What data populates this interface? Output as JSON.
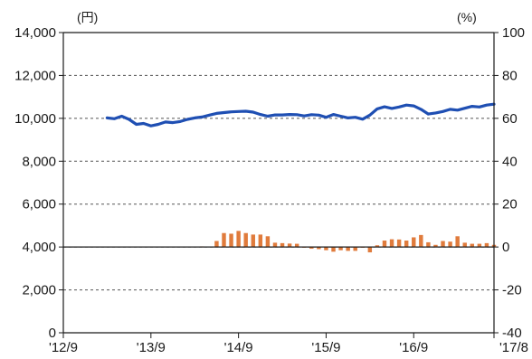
{
  "chart_data": {
    "type": "bar+line",
    "left_unit": "(円)",
    "right_unit": "(%)",
    "y_left": {
      "min": 0,
      "max": 14000,
      "ticks": [
        "0",
        "2,000",
        "4,000",
        "6,000",
        "8,000",
        "10,000",
        "12,000",
        "14,000"
      ]
    },
    "y_right": {
      "min": -40,
      "max": 100,
      "ticks": [
        "-40",
        "-20",
        "0",
        "20",
        "40",
        "60",
        "80",
        "100"
      ]
    },
    "x_ticks": [
      "'12/9",
      "'13/9",
      "'14/9",
      "'15/9",
      "'16/9",
      "'17/8"
    ],
    "x_tick_months": [
      0,
      12,
      24,
      36,
      48,
      59
    ],
    "x_range_months": [
      0,
      59
    ],
    "grid": "dashed horizontal",
    "zero_line_right_axis": 0,
    "colors": {
      "line": "#1f4fb3",
      "bars": "#e07b3c",
      "axis": "#1a1a1a",
      "grid": "#555555"
    },
    "line_series": {
      "axis": "left",
      "month_offsets": [
        6,
        7,
        8,
        9,
        10,
        11,
        12,
        13,
        14,
        15,
        16,
        17,
        18,
        19,
        20,
        21,
        22,
        23,
        24,
        25,
        26,
        27,
        28,
        29,
        30,
        31,
        32,
        33,
        34,
        35,
        36,
        37,
        38,
        39,
        40,
        41,
        42,
        43,
        44,
        45,
        46,
        47,
        48,
        49,
        50,
        51,
        52,
        53,
        54,
        55,
        56,
        57,
        58,
        59
      ],
      "values": [
        10020,
        9980,
        10100,
        9950,
        9720,
        9760,
        9650,
        9720,
        9830,
        9800,
        9850,
        9950,
        10020,
        10060,
        10150,
        10230,
        10270,
        10300,
        10320,
        10330,
        10290,
        10180,
        10100,
        10160,
        10160,
        10180,
        10170,
        10110,
        10170,
        10150,
        10050,
        10180,
        10100,
        10020,
        10050,
        9960,
        10150,
        10440,
        10540,
        10460,
        10530,
        10620,
        10580,
        10420,
        10200,
        10250,
        10320,
        10420,
        10380,
        10470,
        10560,
        10530,
        10620,
        10660
      ]
    },
    "bar_series": {
      "axis": "right",
      "month_offsets": [
        18,
        19,
        20,
        21,
        22,
        23,
        24,
        25,
        26,
        27,
        28,
        29,
        30,
        31,
        32,
        33,
        34,
        35,
        36,
        37,
        38,
        39,
        40,
        41,
        42,
        43,
        44,
        45,
        46,
        47,
        48,
        49,
        50,
        51,
        52,
        53,
        54,
        55,
        56,
        57,
        58,
        59
      ],
      "values": [
        0.2,
        0.3,
        0.2,
        2.8,
        6.5,
        6.2,
        7.5,
        6.5,
        5.8,
        5.8,
        5.0,
        2.0,
        1.8,
        1.6,
        1.5,
        -0.3,
        -0.8,
        -1.0,
        -1.5,
        -2.2,
        -1.5,
        -1.8,
        -1.8,
        -0.2,
        -2.5,
        0.8,
        3.0,
        3.6,
        3.5,
        3.0,
        4.5,
        5.6,
        2.2,
        1.0,
        2.8,
        2.5,
        5.0,
        2.0,
        1.5,
        1.5,
        1.8,
        1.0
      ]
    }
  }
}
